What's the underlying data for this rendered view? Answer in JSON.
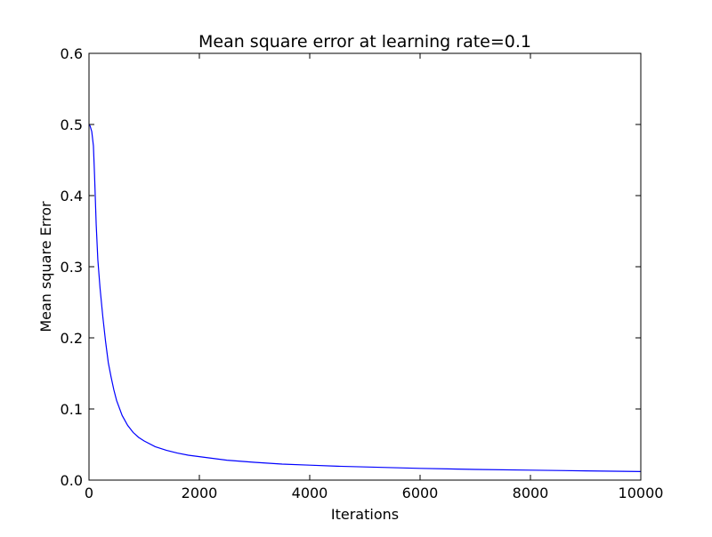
{
  "chart_data": {
    "type": "line",
    "title": "Mean square error at learning rate=0.1",
    "xlabel": "Iterations",
    "ylabel": "Mean square Error",
    "xlim": [
      0,
      10000
    ],
    "ylim": [
      0,
      0.6
    ],
    "xticks": [
      "0",
      "2000",
      "4000",
      "6000",
      "8000",
      "10000"
    ],
    "yticks": [
      "0.0",
      "0.1",
      "0.2",
      "0.3",
      "0.4",
      "0.5",
      "0.6"
    ],
    "grid": false,
    "series": [
      {
        "color": "#0000ff",
        "x": [
          0,
          20,
          50,
          80,
          100,
          130,
          160,
          200,
          250,
          300,
          350,
          400,
          450,
          500,
          600,
          700,
          800,
          900,
          1000,
          1200,
          1400,
          1600,
          1800,
          2000,
          2500,
          3000,
          3500,
          4000,
          4500,
          5000,
          6000,
          7000,
          8000,
          9000,
          10000
        ],
        "y": [
          0.5,
          0.498,
          0.49,
          0.47,
          0.43,
          0.36,
          0.31,
          0.27,
          0.23,
          0.195,
          0.165,
          0.145,
          0.127,
          0.112,
          0.091,
          0.077,
          0.067,
          0.06,
          0.055,
          0.047,
          0.042,
          0.038,
          0.035,
          0.033,
          0.028,
          0.025,
          0.0225,
          0.021,
          0.0195,
          0.0185,
          0.0165,
          0.015,
          0.014,
          0.013,
          0.012
        ]
      }
    ]
  }
}
